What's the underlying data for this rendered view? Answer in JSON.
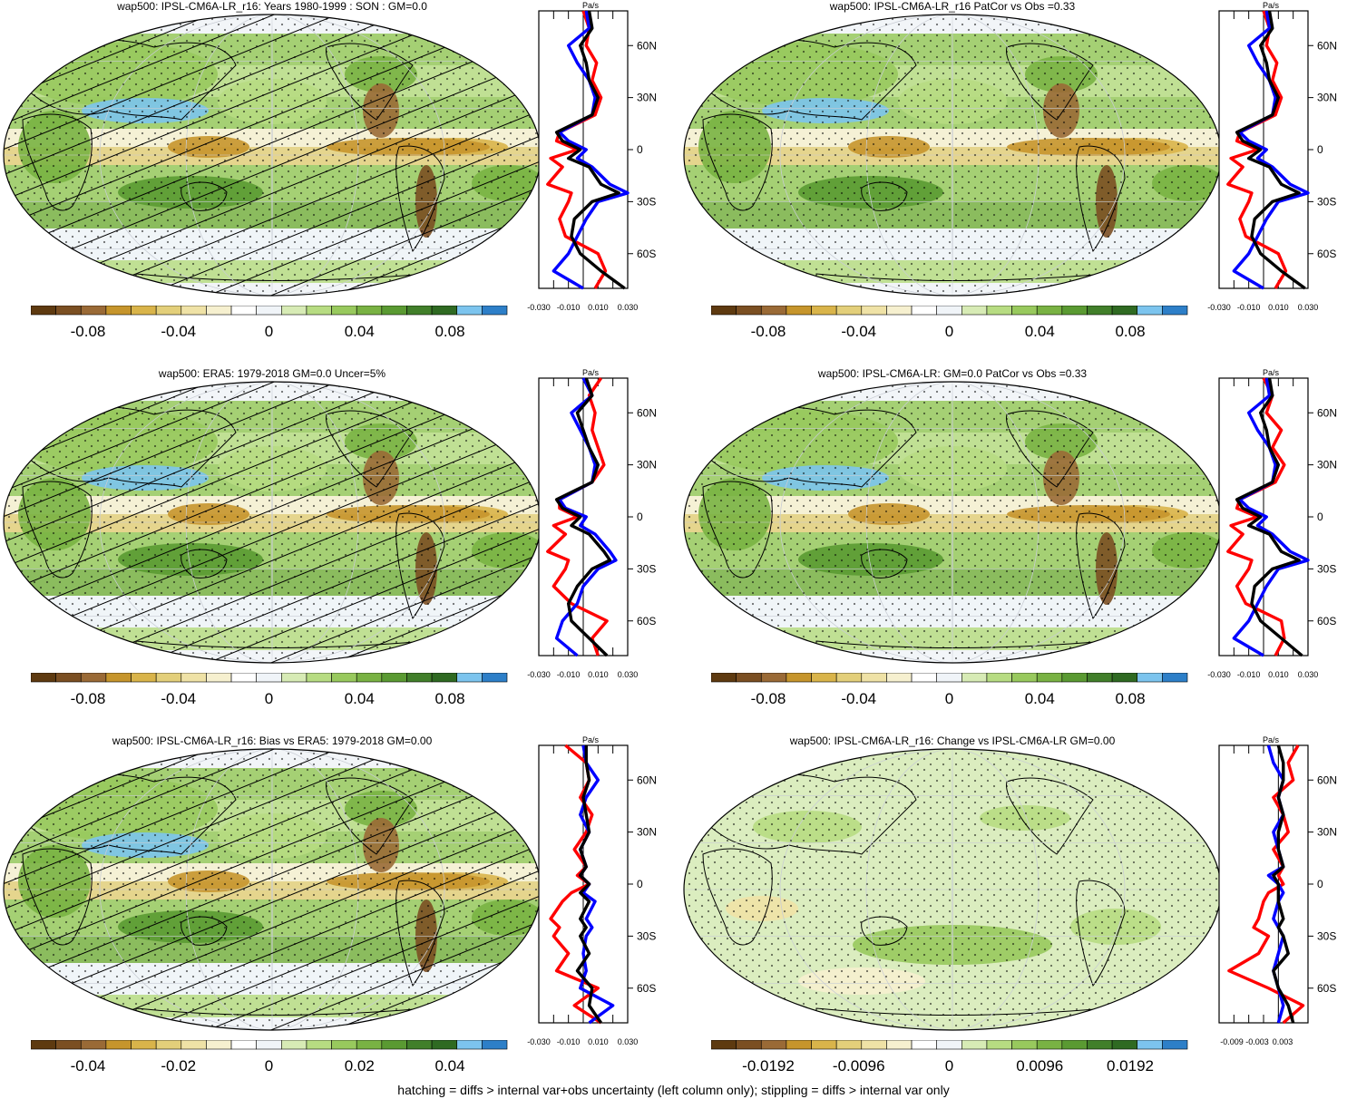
{
  "footer": "hatching = diffs > internal var+obs uncertainty (left column only); stippling = diffs > internal var only",
  "profile_unit": "Pa/s",
  "lat_labels": [
    "60N",
    "30N",
    "0",
    "30S",
    "60S"
  ],
  "colors": {
    "ramp": [
      "#5e3a10",
      "#7b4f22",
      "#9a6a36",
      "#c6952c",
      "#d9b44a",
      "#e3cf7a",
      "#efe2a6",
      "#f6f0cf",
      "#ffffff",
      "#f0f4f8",
      "#d7ebb5",
      "#b7dc82",
      "#98c95d",
      "#79b243",
      "#5a9a32",
      "#417f2a",
      "#2f6a22",
      "#7cc4ee",
      "#2d7fc8"
    ],
    "ocean_base": "#f2f5f8",
    "land_outline": "#000000",
    "profile_model": "#ff0000",
    "profile_obs": "#0000ff",
    "profile_mean": "#000000"
  },
  "panels": [
    {
      "id": "model-clim",
      "title": "wap500: IPSL-CM6A-LR_r16: Years 1980-1999 : SON : GM=0.0",
      "hatched": true,
      "colorbar_labels": [
        "-0.08",
        "-0.04",
        "0",
        "0.04",
        "0.08"
      ],
      "profile_ticks": [
        "-0.030",
        "-0.010",
        "0.010",
        "0.030"
      ],
      "chart_data": {
        "type": "line",
        "x_unit": "Pa/s",
        "xlim": [
          -0.03,
          0.03
        ],
        "ylim": [
          -80,
          80
        ],
        "lat": [
          80,
          70,
          60,
          50,
          40,
          30,
          20,
          10,
          5,
          0,
          -5,
          -10,
          -20,
          -25,
          -30,
          -40,
          -50,
          -60,
          -70,
          -80
        ],
        "series": [
          {
            "color": "red",
            "values": [
              0.0,
              0.004,
              0.002,
              0.009,
              0.006,
              0.012,
              0.008,
              -0.016,
              -0.018,
              -0.004,
              -0.022,
              -0.014,
              -0.024,
              -0.008,
              -0.01,
              -0.016,
              -0.012,
              0.01,
              0.015,
              0.008
            ]
          },
          {
            "color": "blue",
            "values": [
              0.002,
              0.004,
              -0.01,
              -0.004,
              0.004,
              0.008,
              0.006,
              -0.016,
              -0.01,
              0.002,
              -0.004,
              0.006,
              0.018,
              0.03,
              0.01,
              0.002,
              -0.004,
              -0.01,
              -0.02,
              0.0
            ]
          },
          {
            "color": "black",
            "values": [
              0.004,
              0.006,
              -0.002,
              0.002,
              0.004,
              0.01,
              0.006,
              -0.018,
              -0.014,
              -0.002,
              -0.01,
              0.004,
              0.012,
              0.024,
              0.006,
              -0.006,
              -0.008,
              -0.002,
              0.012,
              0.028
            ]
          }
        ]
      }
    },
    {
      "id": "model-patcor",
      "title": "wap500: IPSL-CM6A-LR_r16 PatCor vs Obs =0.33",
      "hatched": false,
      "colorbar_labels": [
        "-0.08",
        "-0.04",
        "0",
        "0.04",
        "0.08"
      ],
      "profile_ticks": [
        "-0.030",
        "-0.010",
        "0.010",
        "0.030"
      ],
      "chart_data": {
        "type": "line",
        "x_unit": "Pa/s",
        "xlim": [
          -0.03,
          0.03
        ],
        "ylim": [
          -80,
          80
        ],
        "lat": [
          80,
          70,
          60,
          50,
          40,
          30,
          20,
          10,
          5,
          0,
          -5,
          -10,
          -20,
          -25,
          -30,
          -40,
          -50,
          -60,
          -70,
          -80
        ],
        "series": [
          {
            "color": "red",
            "values": [
              0.0,
              0.004,
              0.002,
              0.009,
              0.006,
              0.012,
              0.008,
              -0.016,
              -0.018,
              -0.004,
              -0.022,
              -0.014,
              -0.024,
              -0.008,
              -0.01,
              -0.016,
              -0.012,
              0.01,
              0.015,
              0.008
            ]
          },
          {
            "color": "blue",
            "values": [
              0.002,
              0.004,
              -0.01,
              -0.004,
              0.004,
              0.008,
              0.006,
              -0.016,
              -0.01,
              0.002,
              -0.004,
              0.006,
              0.018,
              0.03,
              0.01,
              0.002,
              -0.004,
              -0.01,
              -0.02,
              0.0
            ]
          },
          {
            "color": "black",
            "values": [
              0.004,
              0.006,
              -0.002,
              0.002,
              0.004,
              0.01,
              0.006,
              -0.018,
              -0.014,
              -0.002,
              -0.01,
              0.004,
              0.012,
              0.024,
              0.006,
              -0.006,
              -0.008,
              -0.002,
              0.012,
              0.028
            ]
          }
        ]
      }
    },
    {
      "id": "obs-clim",
      "title": "wap500: ERA5: 1979-2018 GM=0.0 Uncer=5%",
      "hatched": true,
      "colorbar_labels": [
        "-0.08",
        "-0.04",
        "0",
        "0.04",
        "0.08"
      ],
      "profile_ticks": [
        "-0.030",
        "-0.010",
        "0.010",
        "0.030"
      ],
      "chart_data": {
        "type": "line",
        "x_unit": "Pa/s",
        "xlim": [
          -0.03,
          0.03
        ],
        "ylim": [
          -80,
          80
        ],
        "lat": [
          80,
          70,
          60,
          50,
          40,
          30,
          20,
          10,
          5,
          0,
          -5,
          -10,
          -20,
          -25,
          -30,
          -40,
          -50,
          -60,
          -70,
          -80
        ],
        "series": [
          {
            "color": "red",
            "values": [
              0.012,
              0.004,
              0.008,
              0.006,
              0.01,
              0.014,
              0.006,
              -0.016,
              -0.016,
              -0.004,
              -0.02,
              -0.012,
              -0.024,
              -0.01,
              -0.012,
              -0.02,
              -0.008,
              0.016,
              0.006,
              0.01
            ]
          },
          {
            "color": "blue",
            "values": [
              0.0,
              0.006,
              -0.008,
              -0.002,
              0.004,
              0.008,
              0.006,
              -0.016,
              -0.012,
              0.002,
              -0.002,
              0.008,
              0.018,
              0.022,
              0.01,
              0.0,
              -0.004,
              -0.014,
              -0.018,
              -0.004
            ]
          },
          {
            "color": "black",
            "values": [
              0.002,
              0.006,
              -0.004,
              0.0,
              0.004,
              0.01,
              0.006,
              -0.018,
              -0.014,
              -0.002,
              -0.008,
              0.004,
              0.014,
              0.018,
              0.006,
              -0.004,
              -0.01,
              -0.008,
              0.004,
              0.016
            ]
          }
        ]
      }
    },
    {
      "id": "model-clim-2",
      "title": "wap500: IPSL-CM6A-LR: GM=0.0 PatCor vs Obs =0.33",
      "hatched": false,
      "colorbar_labels": [
        "-0.08",
        "-0.04",
        "0",
        "0.04",
        "0.08"
      ],
      "profile_ticks": [
        "-0.030",
        "-0.010",
        "0.010",
        "0.030"
      ],
      "chart_data": {
        "type": "line",
        "x_unit": "Pa/s",
        "xlim": [
          -0.03,
          0.03
        ],
        "ylim": [
          -80,
          80
        ],
        "lat": [
          80,
          70,
          60,
          50,
          40,
          30,
          20,
          10,
          5,
          0,
          -5,
          -10,
          -20,
          -25,
          -30,
          -40,
          -50,
          -60,
          -70,
          -80
        ],
        "series": [
          {
            "color": "red",
            "values": [
              0.0,
              0.006,
              0.002,
              0.012,
              0.006,
              0.014,
              0.008,
              -0.016,
              -0.018,
              -0.004,
              -0.022,
              -0.014,
              -0.024,
              -0.008,
              -0.01,
              -0.018,
              -0.012,
              0.012,
              0.014,
              0.008
            ]
          },
          {
            "color": "blue",
            "values": [
              0.002,
              0.004,
              -0.01,
              -0.004,
              0.004,
              0.008,
              0.006,
              -0.016,
              -0.01,
              0.002,
              -0.004,
              0.006,
              0.018,
              0.03,
              0.01,
              0.002,
              -0.004,
              -0.01,
              -0.02,
              0.0
            ]
          },
          {
            "color": "black",
            "values": [
              0.004,
              0.006,
              -0.002,
              0.002,
              0.004,
              0.01,
              0.006,
              -0.018,
              -0.014,
              -0.002,
              -0.01,
              0.004,
              0.012,
              0.024,
              0.006,
              -0.006,
              -0.008,
              -0.002,
              0.012,
              0.026
            ]
          }
        ]
      }
    },
    {
      "id": "bias",
      "title": "wap500: IPSL-CM6A-LR_r16: Bias vs ERA5: 1979-2018  GM=0.00",
      "hatched": true,
      "colorbar_labels": [
        "-0.04",
        "-0.02",
        "0",
        "0.02",
        "0.04"
      ],
      "profile_ticks": [
        "-0.030",
        "-0.010",
        "0.010",
        "0.030"
      ],
      "chart_data": {
        "type": "line",
        "x_unit": "Pa/s",
        "xlim": [
          -0.03,
          0.03
        ],
        "ylim": [
          -80,
          80
        ],
        "lat": [
          80,
          70,
          60,
          50,
          40,
          30,
          20,
          10,
          5,
          0,
          -5,
          -10,
          -20,
          -25,
          -30,
          -40,
          -50,
          -60,
          -70,
          -80
        ],
        "series": [
          {
            "color": "red",
            "values": [
              -0.012,
              0.002,
              0.004,
              -0.002,
              0.006,
              0.002,
              -0.006,
              0.002,
              -0.004,
              0.004,
              -0.008,
              -0.014,
              -0.022,
              -0.016,
              -0.02,
              -0.01,
              -0.018,
              0.01,
              -0.006,
              0.012
            ]
          },
          {
            "color": "blue",
            "values": [
              0.0,
              0.002,
              0.01,
              0.002,
              -0.002,
              0.004,
              -0.002,
              0.002,
              -0.002,
              0.004,
              0.0,
              0.008,
              0.002,
              0.006,
              0.002,
              0.0,
              0.002,
              -0.002,
              0.02,
              0.004
            ]
          },
          {
            "color": "black",
            "values": [
              0.002,
              0.002,
              0.004,
              0.0,
              0.002,
              0.004,
              -0.002,
              0.002,
              -0.002,
              0.004,
              -0.002,
              0.004,
              -0.002,
              0.002,
              -0.002,
              0.004,
              -0.004,
              0.006,
              0.004,
              0.012
            ]
          }
        ]
      }
    },
    {
      "id": "change",
      "title": "wap500: IPSL-CM6A-LR_r16: Change vs IPSL-CM6A-LR GM=0.00",
      "hatched": false,
      "colorbar_labels": [
        "-0.0192",
        "-0.0096",
        "0",
        "0.0096",
        "0.0192"
      ],
      "profile_ticks": [
        "-0.009",
        "-0.003",
        "0.003"
      ],
      "chart_data": {
        "type": "line",
        "x_unit": "Pa/s",
        "xlim": [
          -0.012,
          0.006
        ],
        "ylim": [
          -80,
          80
        ],
        "lat": [
          80,
          70,
          60,
          50,
          40,
          30,
          20,
          10,
          5,
          0,
          -5,
          -10,
          -20,
          -25,
          -30,
          -40,
          -50,
          -60,
          -70,
          -80
        ],
        "series": [
          {
            "color": "red",
            "values": [
              0.004,
              0.002,
              0.003,
              -0.001,
              0.001,
              0.002,
              -0.001,
              0.001,
              0.0,
              0.001,
              -0.002,
              -0.003,
              -0.004,
              -0.005,
              -0.002,
              -0.004,
              -0.01,
              -0.002,
              0.005,
              0.001
            ]
          },
          {
            "color": "blue",
            "values": [
              -0.002,
              -0.001,
              0.001,
              0.0,
              0.001,
              -0.001,
              0.0,
              0.001,
              -0.002,
              0.0,
              0.001,
              0.0,
              -0.001,
              0.0,
              0.001,
              0.0,
              -0.001,
              0.0,
              0.001,
              0.0
            ]
          },
          {
            "color": "black",
            "values": [
              0.0,
              0.001,
              0.001,
              0.0,
              0.001,
              0.0,
              0.0,
              0.001,
              -0.001,
              0.0,
              0.0,
              0.0,
              0.001,
              0.0,
              0.001,
              0.002,
              -0.001,
              0.0,
              0.002,
              0.003
            ]
          }
        ]
      }
    }
  ]
}
